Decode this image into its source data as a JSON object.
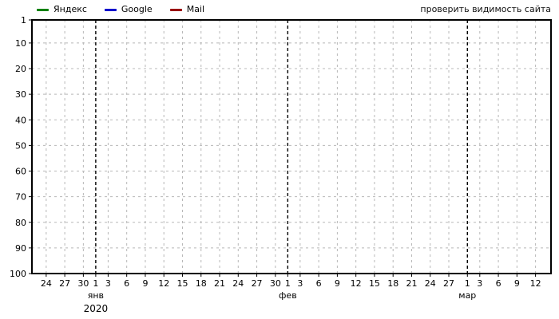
{
  "legend": {
    "items": [
      {
        "label": "Яндекс",
        "color": "#008000"
      },
      {
        "label": "Google",
        "color": "#0000cc"
      },
      {
        "label": "Mail",
        "color": "#990000"
      }
    ]
  },
  "header": {
    "visibility_link_label": "проверить видимость сайта"
  },
  "chart_data": {
    "type": "line",
    "title": "",
    "description": "Site position tracking chart (positions 1-100, inverted axis), empty series for Яндекс / Google / Mail, dates 24 Dec 2019 – 12 Mar 2020",
    "x_axis": {
      "unit": "days-from-first-tick",
      "range_days": [
        -2.3,
        81.5
      ],
      "ticks": [
        {
          "day": 0,
          "label": "24"
        },
        {
          "day": 3,
          "label": "27"
        },
        {
          "day": 6,
          "label": "30"
        },
        {
          "day": 8,
          "label": "1"
        },
        {
          "day": 10,
          "label": "3"
        },
        {
          "day": 13,
          "label": "6"
        },
        {
          "day": 16,
          "label": "9"
        },
        {
          "day": 19,
          "label": "12"
        },
        {
          "day": 22,
          "label": "15"
        },
        {
          "day": 25,
          "label": "18"
        },
        {
          "day": 28,
          "label": "21"
        },
        {
          "day": 31,
          "label": "24"
        },
        {
          "day": 34,
          "label": "27"
        },
        {
          "day": 37,
          "label": "30"
        },
        {
          "day": 39,
          "label": "1"
        },
        {
          "day": 41,
          "label": "3"
        },
        {
          "day": 44,
          "label": "6"
        },
        {
          "day": 47,
          "label": "9"
        },
        {
          "day": 50,
          "label": "12"
        },
        {
          "day": 53,
          "label": "15"
        },
        {
          "day": 56,
          "label": "18"
        },
        {
          "day": 59,
          "label": "21"
        },
        {
          "day": 62,
          "label": "24"
        },
        {
          "day": 65,
          "label": "27"
        },
        {
          "day": 68,
          "label": "1"
        },
        {
          "day": 70,
          "label": "3"
        },
        {
          "day": 73,
          "label": "6"
        },
        {
          "day": 76,
          "label": "9"
        },
        {
          "day": 79,
          "label": "12"
        }
      ],
      "month_markers": [
        {
          "day": 8,
          "label": "янв",
          "year": "2020"
        },
        {
          "day": 39,
          "label": "фев"
        },
        {
          "day": 68,
          "label": "мар"
        }
      ]
    },
    "y_axis": {
      "ticks": [
        1,
        10,
        20,
        30,
        40,
        50,
        60,
        70,
        80,
        90,
        100
      ],
      "range": [
        1,
        100
      ],
      "inverted": true
    },
    "series": [
      {
        "name": "Яндекс",
        "color": "#008000",
        "points": []
      },
      {
        "name": "Google",
        "color": "#0000cc",
        "points": []
      },
      {
        "name": "Mail",
        "color": "#990000",
        "points": []
      }
    ],
    "grid": {
      "on": true,
      "color": "#b8b8b8",
      "dash": "3,4"
    },
    "month_line": {
      "color": "#000000",
      "dash": "4,3"
    },
    "border_color": "#000000",
    "legend_position": "top-left"
  }
}
